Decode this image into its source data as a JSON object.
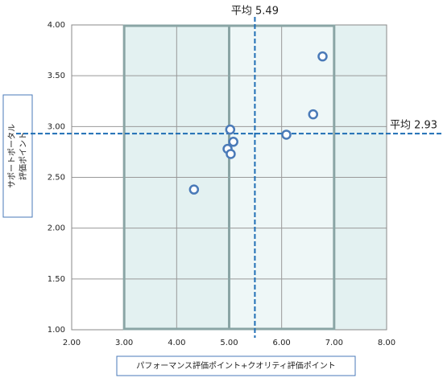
{
  "chart_data": {
    "type": "scatter",
    "x_label": "パフォーマンス評価ポイント+クオリティ評価ポイント",
    "y_label": [
      "サポートポータル",
      "評価ポイント"
    ],
    "x": [
      4.33,
      4.97,
      5.02,
      5.03,
      5.08,
      6.09,
      6.6,
      6.78
    ],
    "series": [
      {
        "color": "#4a7ab8",
        "values": [
          2.38,
          2.78,
          2.97,
          2.73,
          2.85,
          2.92,
          3.12,
          3.69
        ]
      }
    ],
    "xlim": [
      2,
      8
    ],
    "xticks": [
      {
        "value": 2,
        "label": "2.00"
      },
      {
        "value": 3,
        "label": "3.00"
      },
      {
        "value": 4,
        "label": "4.00"
      },
      {
        "value": 5,
        "label": "5.00"
      },
      {
        "value": 6,
        "label": "6.00"
      },
      {
        "value": 7,
        "label": "7.00"
      },
      {
        "value": 8,
        "label": "8.00"
      }
    ],
    "ylim": [
      1,
      4
    ],
    "yticks": [
      {
        "value": 1,
        "label": "1.00"
      },
      {
        "value": 1.5,
        "label": "1.50"
      },
      {
        "value": 2,
        "label": "2.00"
      },
      {
        "value": 2.5,
        "label": "2.50"
      },
      {
        "value": 3,
        "label": "3.00"
      },
      {
        "value": 3.5,
        "label": "3.50"
      },
      {
        "value": 4,
        "label": "4.00"
      }
    ],
    "grid": true,
    "shaded_regions": [
      {
        "xlim": [
          3,
          5
        ],
        "color": "#e3f1f1"
      },
      {
        "xlim": [
          5,
          7
        ],
        "color": "#eef7f7"
      },
      {
        "xlim": [
          7,
          8
        ],
        "color": "#e3f1f1"
      }
    ],
    "frame": {
      "xlim": [
        3,
        7
      ],
      "dividers": [
        5
      ],
      "color": "#8aa5a5"
    },
    "mean_x": {
      "value": 5.49,
      "label": "平均 5.49"
    },
    "mean_y": {
      "value": 2.93,
      "label": "平均 2.93"
    },
    "mean_color": "#1f6eb5"
  }
}
